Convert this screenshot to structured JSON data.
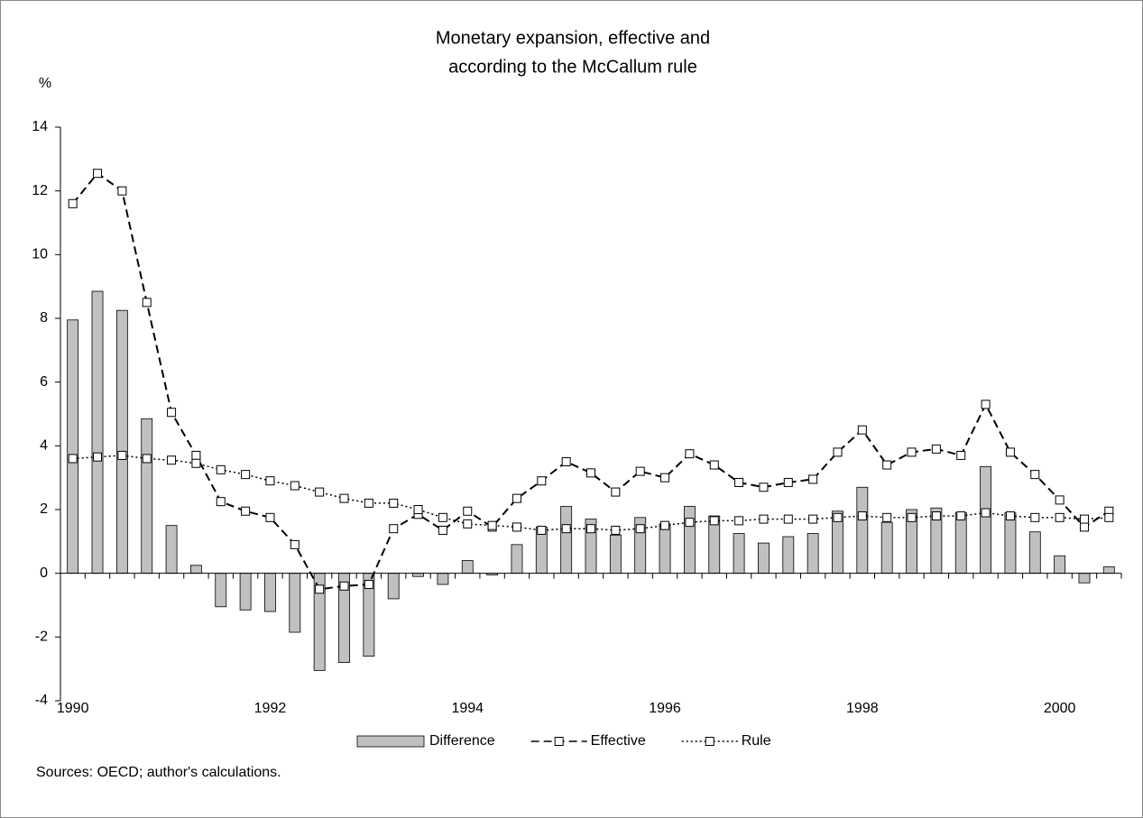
{
  "chart_data": {
    "type": "bar-line",
    "title": [
      "Monetary expansion, effective and",
      "according to the McCallum rule"
    ],
    "y_label": "%",
    "source": "Sources: OECD; author's calculations.",
    "categories": [
      "1990",
      null,
      null,
      null,
      null,
      null,
      null,
      null,
      "1992",
      null,
      null,
      null,
      null,
      null,
      null,
      null,
      "1994",
      null,
      null,
      null,
      null,
      null,
      null,
      null,
      "1996",
      null,
      null,
      null,
      null,
      null,
      null,
      null,
      "1998",
      null,
      null,
      null,
      null,
      null,
      null,
      null,
      "2000",
      null,
      null
    ],
    "ylim": [
      -4,
      14
    ],
    "yticks": [
      -4,
      -2,
      0,
      2,
      4,
      6,
      8,
      10,
      12,
      14
    ],
    "legend": "bottom",
    "series": [
      {
        "name": "Difference",
        "type": "bar",
        "color": "#c0c0c0",
        "values": [
          7.95,
          8.85,
          8.25,
          4.85,
          1.5,
          0.25,
          -1.05,
          -1.15,
          -1.2,
          -1.85,
          -3.05,
          -2.8,
          -2.6,
          -0.8,
          -0.1,
          -0.35,
          0.4,
          -0.05,
          0.9,
          1.45,
          2.1,
          1.7,
          1.2,
          1.75,
          1.55,
          2.1,
          1.8,
          1.25,
          0.95,
          1.15,
          1.25,
          1.95,
          2.7,
          1.6,
          2.0,
          2.05,
          1.9,
          3.35,
          1.9,
          1.3,
          0.55,
          -0.3,
          0.2
        ]
      },
      {
        "name": "Effective",
        "type": "line",
        "style": "dashed",
        "color": "#000000",
        "values": [
          11.6,
          12.55,
          12.0,
          8.5,
          5.05,
          3.7,
          2.25,
          1.95,
          1.75,
          0.9,
          -0.5,
          -0.4,
          -0.35,
          1.4,
          1.85,
          1.35,
          1.95,
          1.45,
          2.35,
          2.9,
          3.5,
          3.15,
          2.55,
          3.2,
          3.0,
          3.75,
          3.4,
          2.85,
          2.7,
          2.85,
          2.95,
          3.8,
          4.5,
          3.4,
          3.8,
          3.9,
          3.7,
          5.3,
          3.8,
          3.1,
          2.3,
          1.45,
          1.95
        ]
      },
      {
        "name": "Rule",
        "type": "line",
        "style": "dotted",
        "color": "#000000",
        "values": [
          3.6,
          3.65,
          3.7,
          3.6,
          3.55,
          3.45,
          3.25,
          3.1,
          2.9,
          2.75,
          2.55,
          2.35,
          2.2,
          2.2,
          2.0,
          1.75,
          1.55,
          1.5,
          1.45,
          1.35,
          1.4,
          1.4,
          1.35,
          1.4,
          1.5,
          1.6,
          1.65,
          1.65,
          1.7,
          1.7,
          1.7,
          1.75,
          1.8,
          1.75,
          1.75,
          1.8,
          1.8,
          1.9,
          1.8,
          1.75,
          1.75,
          1.7,
          1.75
        ]
      }
    ]
  }
}
